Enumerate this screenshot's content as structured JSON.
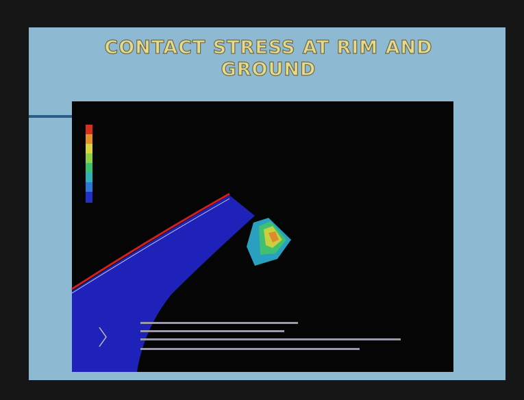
{
  "slide": {
    "title_lines": [
      "CONTACT STRESS AT RIM AND",
      "GROUND"
    ]
  }
}
